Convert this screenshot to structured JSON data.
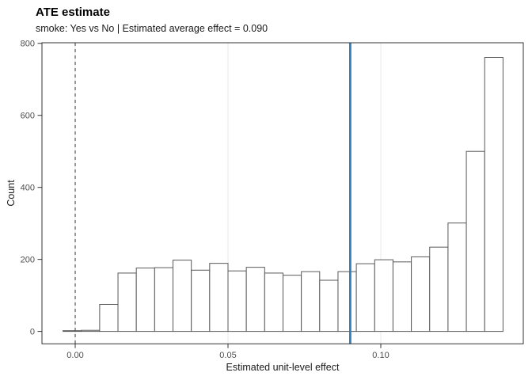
{
  "header": {
    "title": "ATE estimate",
    "subtitle": "smoke: Yes vs No | Estimated average effect = 0.090"
  },
  "chart_data": {
    "type": "bar",
    "subtype": "histogram",
    "title": "ATE estimate",
    "subtitle": "smoke: Yes vs No | Estimated average effect = 0.090",
    "xlabel": "Estimated unit-level effect",
    "ylabel": "Count",
    "bin_start": -0.004,
    "bin_width": 0.006,
    "counts": [
      2,
      3,
      75,
      162,
      176,
      177,
      198,
      170,
      189,
      168,
      178,
      162,
      156,
      166,
      142,
      166,
      188,
      199,
      193,
      207,
      234,
      301,
      500,
      761
    ],
    "x_ticks": [
      {
        "value": 0.0,
        "label": "0.00"
      },
      {
        "value": 0.05,
        "label": "0.05"
      },
      {
        "value": 0.1,
        "label": "0.10"
      }
    ],
    "y_ticks": [
      {
        "value": 0,
        "label": "0"
      },
      {
        "value": 200,
        "label": "200"
      },
      {
        "value": 400,
        "label": "400"
      },
      {
        "value": 600,
        "label": "600"
      },
      {
        "value": 800,
        "label": "800"
      }
    ],
    "xlim": [
      -0.011,
      0.148
    ],
    "ylim": [
      0,
      800
    ],
    "grid": "vertical-major-only",
    "legend": "none",
    "reference_lines": [
      {
        "name": "zero-line",
        "value": 0.0,
        "style": "dashed",
        "color": "#555555"
      },
      {
        "name": "ate-line",
        "value": 0.09,
        "style": "solid",
        "color": "#3080c0"
      }
    ],
    "colors": {
      "bar_fill": "#ffffff",
      "bar_stroke": "#595959",
      "grid": "#e8e8e8",
      "panel_border": "#333333",
      "tick": "#333333",
      "tick_label": "#4d4d4d"
    }
  }
}
